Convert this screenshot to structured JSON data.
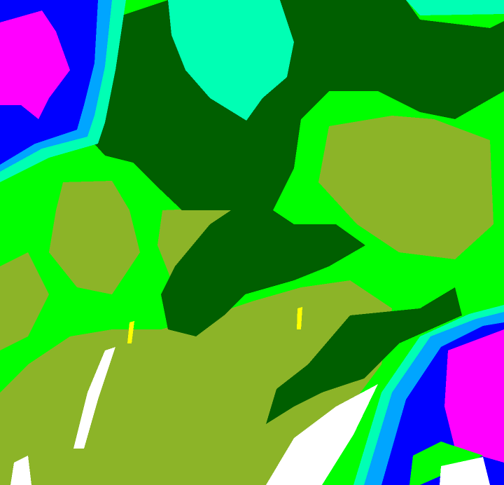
{
  "image": {
    "kind": "false-color classified raster",
    "colors": {
      "magenta": "#ff00ff",
      "blue": "#0000ff",
      "azure": "#00a5ff",
      "aquamarine": "#00ffb4",
      "dark_green": "#005f00",
      "green": "#00ff00",
      "olive": "#8cb428",
      "white": "#ffffff",
      "yellow": "#ffff00"
    }
  }
}
